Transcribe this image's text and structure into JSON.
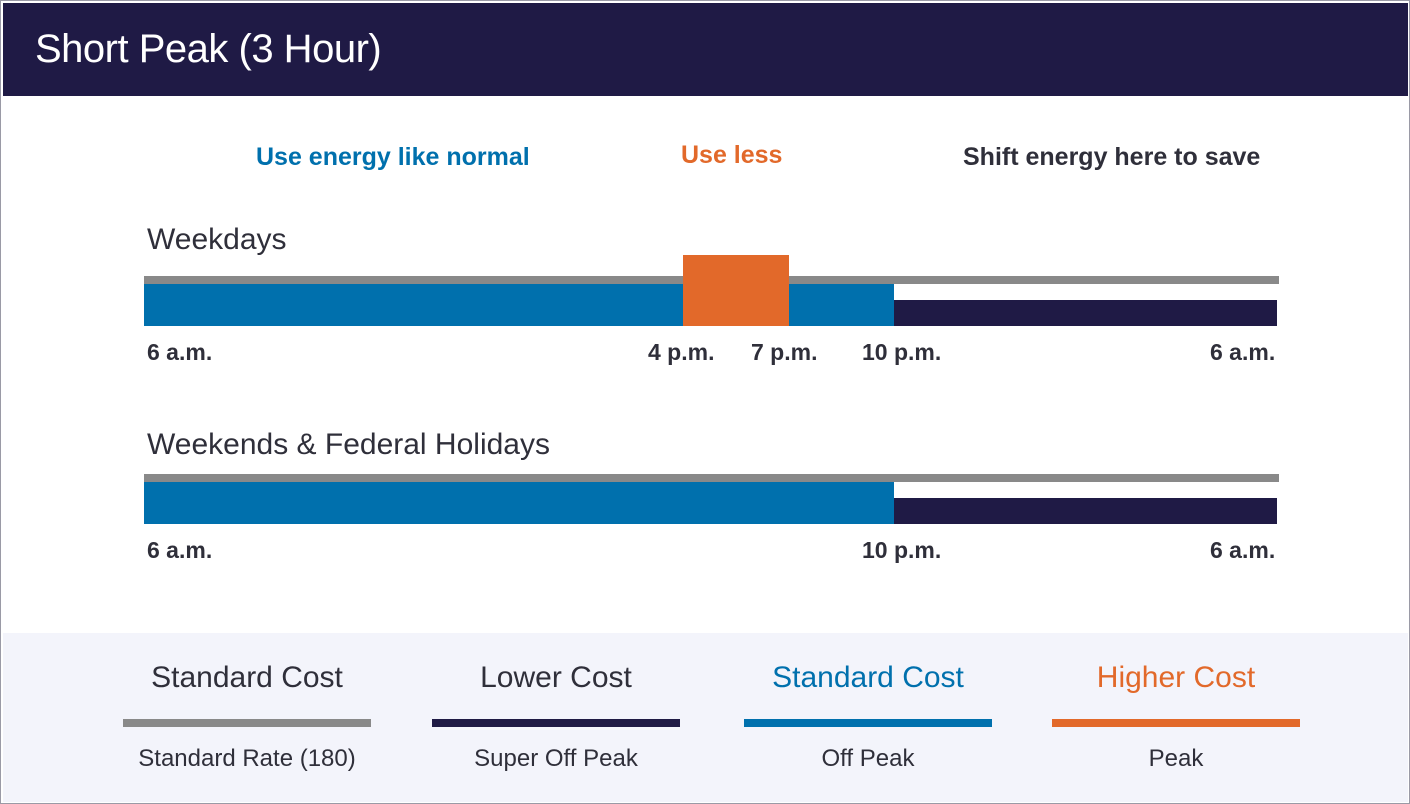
{
  "title": "Short Peak (3 Hour)",
  "hints": {
    "normal": "Use energy like normal",
    "less": "Use less",
    "shift": "Shift energy here to save"
  },
  "colors": {
    "header": "#1f1a45",
    "standard_rate": "#898989",
    "super_off_peak": "#1f1a45",
    "off_peak": "#0070ad",
    "peak": "#e2692a",
    "dark_text": "#2f2f3a"
  },
  "weekdays": {
    "title": "Weekdays",
    "ticks": [
      "6 a.m.",
      "4 p.m.",
      "7 p.m.",
      "10 p.m.",
      "6 a.m."
    ]
  },
  "weekends": {
    "title": "Weekends & Federal Holidays",
    "ticks": [
      "6 a.m.",
      "10 p.m.",
      "6 a.m."
    ]
  },
  "legend": [
    {
      "heading": "Standard Cost",
      "label": "Standard Rate (180)",
      "color_key": "standard_rate"
    },
    {
      "heading": "Lower Cost",
      "label": "Super Off Peak",
      "color_key": "super_off_peak"
    },
    {
      "heading": "Standard Cost",
      "label": "Off Peak",
      "color_key": "off_peak"
    },
    {
      "heading": "Higher Cost",
      "label": "Peak",
      "color_key": "peak"
    }
  ]
}
